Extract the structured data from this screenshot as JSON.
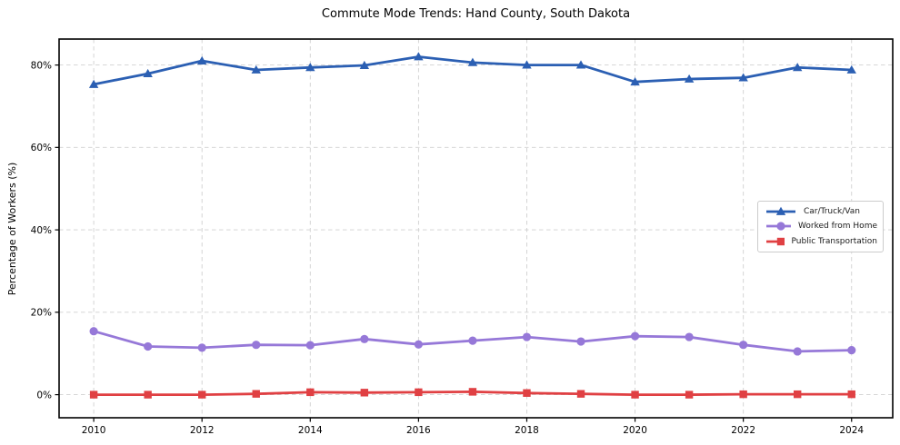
{
  "title": "Commute Mode Trends: Hand County, South Dakota",
  "chart_data": {
    "type": "line",
    "title": "Commute Mode Trends: Hand County, South Dakota",
    "xlabel": "",
    "ylabel": "Percentage of Workers (%)",
    "x": [
      2010,
      2011,
      2012,
      2013,
      2014,
      2015,
      2016,
      2017,
      2018,
      2019,
      2020,
      2021,
      2022,
      2023,
      2024
    ],
    "series": [
      {
        "name": "Car/Truck/Van",
        "color": "#2b5fb3",
        "marker": "triangle",
        "values": [
          75.3,
          77.9,
          81.0,
          78.8,
          79.4,
          79.9,
          82.0,
          80.6,
          80.0,
          80.0,
          75.9,
          76.6,
          76.9,
          79.4,
          78.8
        ]
      },
      {
        "name": "Worked from Home",
        "color": "#9678d8",
        "marker": "circle",
        "values": [
          15.4,
          11.7,
          11.4,
          12.1,
          12.0,
          13.5,
          12.2,
          13.1,
          14.0,
          12.9,
          14.2,
          14.0,
          12.1,
          10.5,
          10.8
        ]
      },
      {
        "name": "Public Transportation",
        "color": "#e04043",
        "marker": "square",
        "values": [
          0.0,
          0.0,
          0.0,
          0.2,
          0.6,
          0.5,
          0.6,
          0.7,
          0.4,
          0.2,
          0.0,
          0.0,
          0.1,
          0.1,
          0.1
        ]
      }
    ],
    "xticks": {
      "values": [
        2010,
        2012,
        2014,
        2016,
        2018,
        2020,
        2022,
        2024
      ],
      "labels": [
        "2010",
        "2012",
        "2014",
        "2016",
        "2018",
        "2020",
        "2022",
        "2024"
      ]
    },
    "yticks": {
      "values": [
        0,
        20,
        40,
        60,
        80
      ],
      "labels": [
        "0%",
        "20%",
        "40%",
        "60%",
        "80%"
      ]
    },
    "xlim": [
      2009.36,
      2024.76
    ],
    "ylim": [
      -5.6,
      86.3
    ],
    "grid": true,
    "legend_position": "center-right",
    "colors": {
      "grid": "#d0d0d0",
      "axis": "#000000",
      "tick_text": "#000000",
      "background": "#ffffff"
    }
  }
}
